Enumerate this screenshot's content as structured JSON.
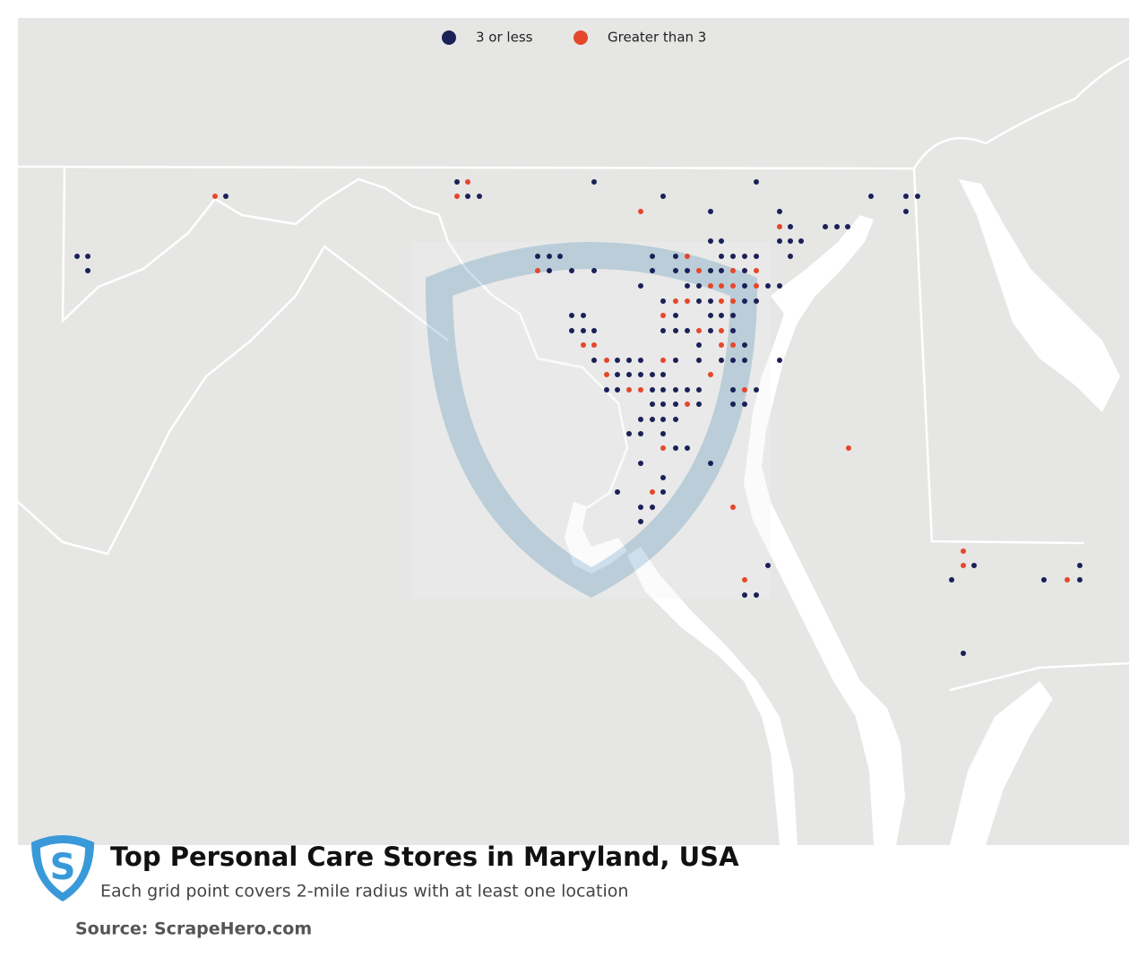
{
  "legend": {
    "items": [
      {
        "label": "3 or less",
        "color": "#1b2157"
      },
      {
        "label": "Greater than 3",
        "color": "#e5472a"
      }
    ]
  },
  "title": "Top Personal Care Stores in Maryland, USA",
  "subtitle": "Each grid point covers 2-mile radius with at least one location",
  "source": "Source: ScrapeHero.com"
}
